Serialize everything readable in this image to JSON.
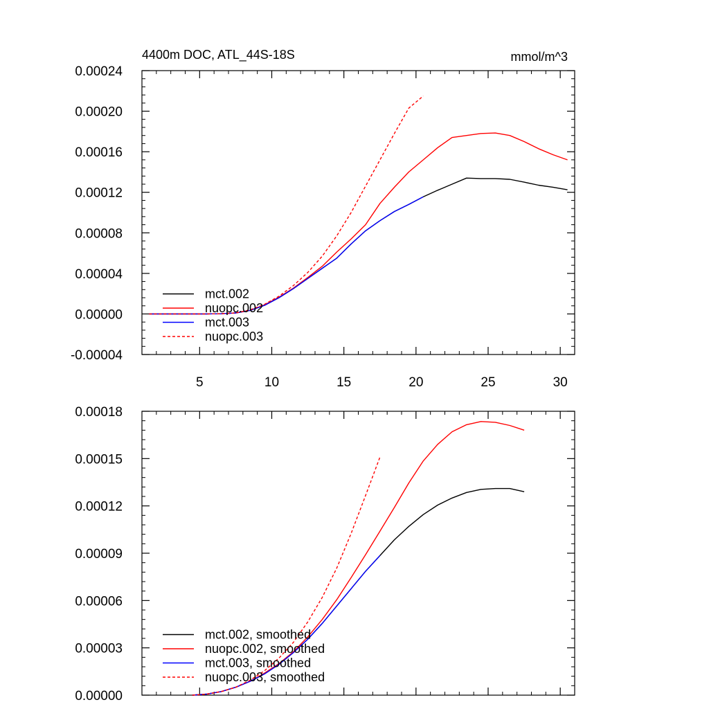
{
  "chart_data": [
    {
      "type": "line",
      "title": "4400m DOC, ATL_44S-18S",
      "units": "mmol/m^3",
      "xlim": [
        1,
        31
      ],
      "ylim": [
        -4e-05,
        0.00024
      ],
      "xticks": [
        5,
        10,
        15,
        20,
        25,
        30
      ],
      "xtick_labels": [
        "5",
        "10",
        "15",
        "20",
        "25",
        "30"
      ],
      "yticks": [
        -4e-05,
        0,
        4e-05,
        8e-05,
        0.00012,
        0.00016,
        0.0002,
        0.00024
      ],
      "ytick_labels": [
        "-0.00004",
        "0.00000",
        "0.00004",
        "0.00008",
        "0.00012",
        "0.00016",
        "0.00020",
        "0.00024"
      ],
      "legend_position": "bottom-left",
      "series": [
        {
          "name": "mct.002",
          "color": "#000000",
          "dash": "solid",
          "x": [
            1.5,
            2.5,
            3.5,
            4.5,
            5.5,
            6.5,
            7.5,
            8.5,
            9.5,
            10.5,
            11.5,
            12.5,
            13.5,
            14.5,
            15.5,
            16.5,
            17.5,
            18.5,
            19.5,
            20.5,
            21.5,
            22.5,
            23.5,
            24.5,
            25.5,
            26.5,
            27.5,
            28.5,
            29.5,
            30.5
          ],
          "y": [
            0,
            0,
            0,
            0,
            0,
            2e-07,
            1e-06,
            3.5e-06,
            8.5e-06,
            1.6e-05,
            2.5e-05,
            3.5e-05,
            4.5e-05,
            5.5e-05,
            6.9e-05,
            8.2e-05,
            9.2e-05,
            0.000101,
            0.000108,
            0.0001155,
            0.000122,
            0.000128,
            0.000134,
            0.0001335,
            0.0001335,
            0.0001328,
            0.00013,
            0.000127,
            0.000125,
            0.0001225
          ]
        },
        {
          "name": "nuopc.002",
          "color": "#ff0000",
          "dash": "solid",
          "x": [
            1.5,
            2.5,
            3.5,
            4.5,
            5.5,
            6.5,
            7.5,
            8.5,
            9.5,
            10.5,
            11.5,
            12.5,
            13.5,
            14.5,
            15.5,
            16.5,
            17.5,
            18.5,
            19.5,
            20.5,
            21.5,
            22.5,
            23.5,
            24.5,
            25.5,
            26.5,
            27.5,
            28.5,
            29.5,
            30.5
          ],
          "y": [
            0,
            0,
            0,
            0,
            0,
            2e-07,
            1e-06,
            3.5e-06,
            9e-06,
            1.65e-05,
            2.55e-05,
            3.6e-05,
            4.7e-05,
            6.1e-05,
            7.4e-05,
            8.8e-05,
            0.000109,
            0.000125,
            0.00014,
            0.000152,
            0.000164,
            0.000174,
            0.000176,
            0.000178,
            0.0001785,
            0.000176,
            0.00017,
            0.000163,
            0.000157,
            0.000152
          ]
        },
        {
          "name": "mct.003",
          "color": "#0000ff",
          "dash": "solid",
          "x": [
            1.5,
            2.5,
            3.5,
            4.5,
            5.5,
            6.5,
            7.5,
            8.5,
            9.5,
            10.5,
            11.5,
            12.5,
            13.5,
            14.5,
            15.5,
            16.5,
            17.5,
            18.5,
            19.5,
            20.5
          ],
          "y": [
            0,
            0,
            0,
            0,
            0,
            2e-07,
            1e-06,
            3.5e-06,
            8.5e-06,
            1.6e-05,
            2.5e-05,
            3.5e-05,
            4.5e-05,
            5.5e-05,
            6.9e-05,
            8.2e-05,
            9.2e-05,
            0.000101,
            0.000108,
            0.0001155
          ]
        },
        {
          "name": "nuopc.003",
          "color": "#ff0000",
          "dash": "dashed",
          "x": [
            1.5,
            2.5,
            3.5,
            4.5,
            5.5,
            6.5,
            7.5,
            8.5,
            9.5,
            10.5,
            11.5,
            12.5,
            13.5,
            14.5,
            15.5,
            16.5,
            17.5,
            18.5,
            19.5,
            20.5
          ],
          "y": [
            0,
            0,
            0,
            0,
            0,
            2e-07,
            1e-06,
            4e-06,
            9.5e-06,
            1.75e-05,
            2.8e-05,
            4.1e-05,
            5.7e-05,
            7.7e-05,
            0.0001,
            0.000126,
            0.000152,
            0.000178,
            0.000203,
            0.000215
          ]
        }
      ]
    },
    {
      "type": "line",
      "xlim": [
        1,
        31
      ],
      "ylim": [
        0,
        0.00018
      ],
      "xticks": [
        5,
        10,
        15,
        20,
        25,
        30
      ],
      "xtick_labels": [],
      "yticks": [
        0,
        3e-05,
        6e-05,
        9e-05,
        0.00012,
        0.00015,
        0.00018
      ],
      "ytick_labels": [
        "0.00000",
        "0.00003",
        "0.00006",
        "0.00009",
        "0.00012",
        "0.00015",
        "0.00018"
      ],
      "legend_position": "bottom-left",
      "series": [
        {
          "name": "mct.002, smoothed",
          "color": "#000000",
          "dash": "solid",
          "x": [
            4.5,
            5.5,
            6.5,
            7.5,
            8.5,
            9.5,
            10.5,
            11.5,
            12.5,
            13.5,
            14.5,
            15.5,
            16.5,
            17.5,
            18.5,
            19.5,
            20.5,
            21.5,
            22.5,
            23.5,
            24.5,
            25.5,
            26.5,
            27.5
          ],
          "y": [
            0,
            7e-07,
            2.3e-06,
            5e-06,
            8.8e-06,
            1.35e-05,
            1.95e-05,
            2.7e-05,
            3.55e-05,
            4.55e-05,
            5.65e-05,
            6.75e-05,
            7.85e-05,
            8.85e-05,
            9.85e-05,
            0.000107,
            0.0001145,
            0.0001205,
            0.000125,
            0.0001285,
            0.0001305,
            0.000131,
            0.000131,
            0.000129
          ]
        },
        {
          "name": "nuopc.002, smoothed",
          "color": "#ff0000",
          "dash": "solid",
          "x": [
            4.5,
            5.5,
            6.5,
            7.5,
            8.5,
            9.5,
            10.5,
            11.5,
            12.5,
            13.5,
            14.5,
            15.5,
            16.5,
            17.5,
            18.5,
            19.5,
            20.5,
            21.5,
            22.5,
            23.5,
            24.5,
            25.5,
            26.5,
            27.5
          ],
          "y": [
            0,
            7e-07,
            2.3e-06,
            5e-06,
            8.8e-06,
            1.4e-05,
            2e-05,
            2.75e-05,
            3.7e-05,
            4.8e-05,
            6.05e-05,
            7.45e-05,
            8.9e-05,
            0.000104,
            0.000119,
            0.0001345,
            0.0001485,
            0.000159,
            0.000167,
            0.0001715,
            0.0001735,
            0.000173,
            0.000171,
            0.000168
          ]
        },
        {
          "name": "mct.003, smoothed",
          "color": "#0000ff",
          "dash": "solid",
          "x": [
            4.5,
            5.5,
            6.5,
            7.5,
            8.5,
            9.5,
            10.5,
            11.5,
            12.5,
            13.5,
            14.5,
            15.5,
            16.5,
            17.5
          ],
          "y": [
            0,
            7e-07,
            2.3e-06,
            5e-06,
            8.8e-06,
            1.35e-05,
            1.95e-05,
            2.7e-05,
            3.55e-05,
            4.55e-05,
            5.65e-05,
            6.75e-05,
            7.85e-05,
            8.85e-05
          ]
        },
        {
          "name": "nuopc.003, smoothed",
          "color": "#ff0000",
          "dash": "dashed",
          "x": [
            4.5,
            5.5,
            6.5,
            7.5,
            8.5,
            9.5,
            10.5,
            11.5,
            12.5,
            13.5,
            14.5,
            15.5,
            16.5,
            17.5
          ],
          "y": [
            0,
            7e-07,
            2.3e-06,
            5e-06,
            9.5e-06,
            1.55e-05,
            2.35e-05,
            3.35e-05,
            4.65e-05,
            6.2e-05,
            8.05e-05,
            0.0001025,
            0.0001265,
            0.000151
          ]
        }
      ]
    }
  ]
}
